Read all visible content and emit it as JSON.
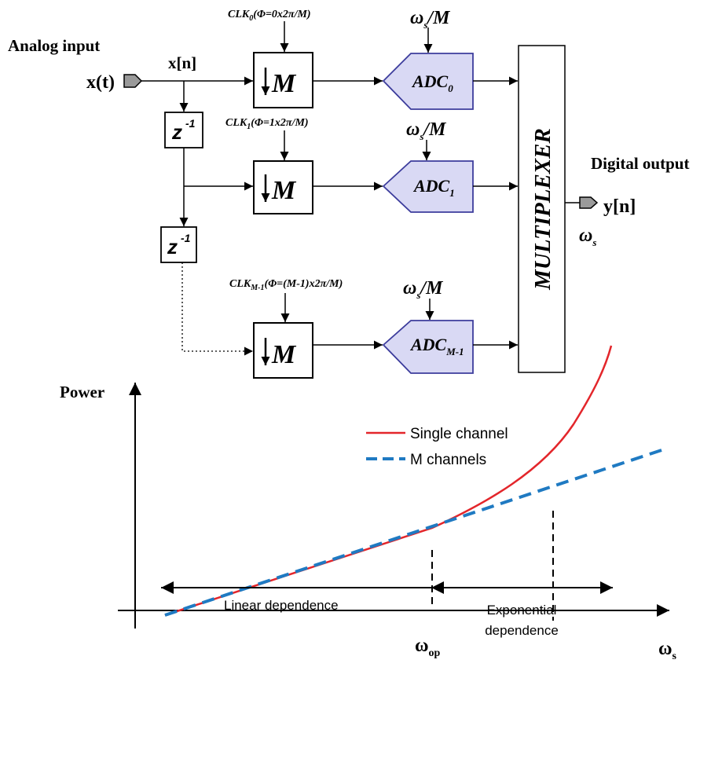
{
  "block_diagram": {
    "input_heading": "Analog input",
    "input_signal": "x(t)",
    "node_label": "x[n]",
    "delay_label": "z",
    "delay_exp": "-1",
    "downsampler_label": "M",
    "clocks": [
      {
        "base": "CLK",
        "sub": "0",
        "phase": "(Φ=0x2π/M)"
      },
      {
        "base": "CLK",
        "sub": "1",
        "phase": "(Φ=1x2π/M)"
      },
      {
        "base": "CLK",
        "sub": "M-1",
        "phase": "(Φ=(M-1)x2π/M)"
      }
    ],
    "adc_rate": {
      "symbol": "ω",
      "sub": "s",
      "suffix": "/M"
    },
    "adcs": [
      {
        "base": "ADC",
        "sub": "0"
      },
      {
        "base": "ADC",
        "sub": "1"
      },
      {
        "base": "ADC",
        "sub": "M-1"
      }
    ],
    "multiplexer_label": "MULTIPLEXER",
    "output_heading": "Digital output",
    "output_signal": "y[n]",
    "output_rate": {
      "symbol": "ω",
      "sub": "s"
    }
  },
  "power_plot": {
    "y_axis_label": "Power",
    "x_axis_symbol": "ω",
    "x_axis_sub": "s",
    "op_point_symbol": "ω",
    "op_point_sub": "op",
    "legend": [
      {
        "label": "Single channel",
        "color": "#e3262b",
        "style": "solid"
      },
      {
        "label": "M channels",
        "color": "#1f7ac2",
        "style": "dashed"
      }
    ],
    "region_left": "Linear dependence",
    "region_right_line1": "Exponential",
    "region_right_line2": "dependence"
  },
  "colors": {
    "adc_fill": "#d9d9f4",
    "adc_stroke": "#3c3c9c",
    "port_fill": "#9a9a9a",
    "ink": "#000000"
  }
}
